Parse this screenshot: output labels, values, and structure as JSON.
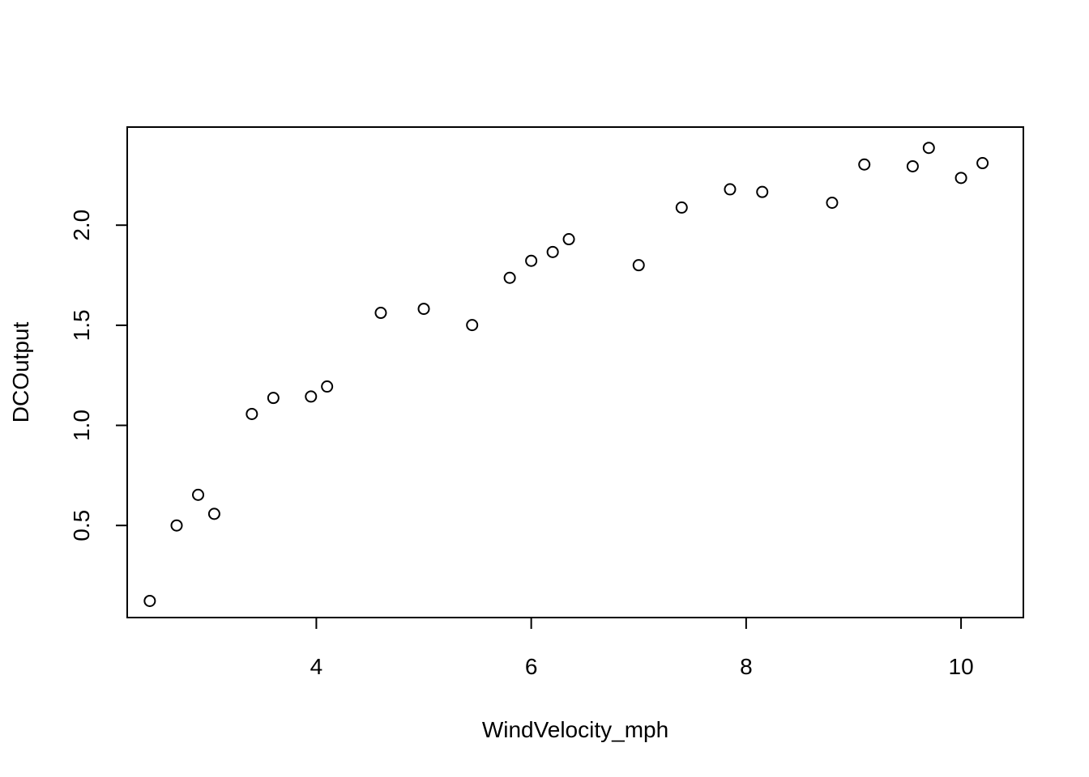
{
  "chart_data": {
    "type": "scatter",
    "xlabel": "WindVelocity_mph",
    "ylabel": "DCOutput",
    "xlim": [
      2.24,
      10.58
    ],
    "ylim": [
      0.04,
      2.49
    ],
    "xticks": [
      4,
      6,
      8,
      10
    ],
    "yticks": [
      0.5,
      1.0,
      1.5,
      2.0
    ],
    "xtick_labels": [
      "4",
      "6",
      "8",
      "10"
    ],
    "ytick_labels": [
      "0.5",
      "1.0",
      "1.5",
      "2.0"
    ],
    "grid": false,
    "marker": "open-circle",
    "points": [
      {
        "x": 2.45,
        "y": 0.123
      },
      {
        "x": 2.7,
        "y": 0.5
      },
      {
        "x": 2.9,
        "y": 0.653
      },
      {
        "x": 3.05,
        "y": 0.558
      },
      {
        "x": 3.4,
        "y": 1.057
      },
      {
        "x": 3.6,
        "y": 1.137
      },
      {
        "x": 3.95,
        "y": 1.144
      },
      {
        "x": 4.1,
        "y": 1.194
      },
      {
        "x": 4.6,
        "y": 1.562
      },
      {
        "x": 5.0,
        "y": 1.582
      },
      {
        "x": 5.45,
        "y": 1.501
      },
      {
        "x": 5.8,
        "y": 1.737
      },
      {
        "x": 6.0,
        "y": 1.822
      },
      {
        "x": 6.2,
        "y": 1.866
      },
      {
        "x": 6.35,
        "y": 1.93
      },
      {
        "x": 7.0,
        "y": 1.8
      },
      {
        "x": 7.4,
        "y": 2.088
      },
      {
        "x": 7.85,
        "y": 2.179
      },
      {
        "x": 8.15,
        "y": 2.166
      },
      {
        "x": 8.8,
        "y": 2.112
      },
      {
        "x": 9.1,
        "y": 2.303
      },
      {
        "x": 9.55,
        "y": 2.294
      },
      {
        "x": 9.7,
        "y": 2.386
      },
      {
        "x": 10.0,
        "y": 2.236
      },
      {
        "x": 10.2,
        "y": 2.31
      }
    ]
  }
}
